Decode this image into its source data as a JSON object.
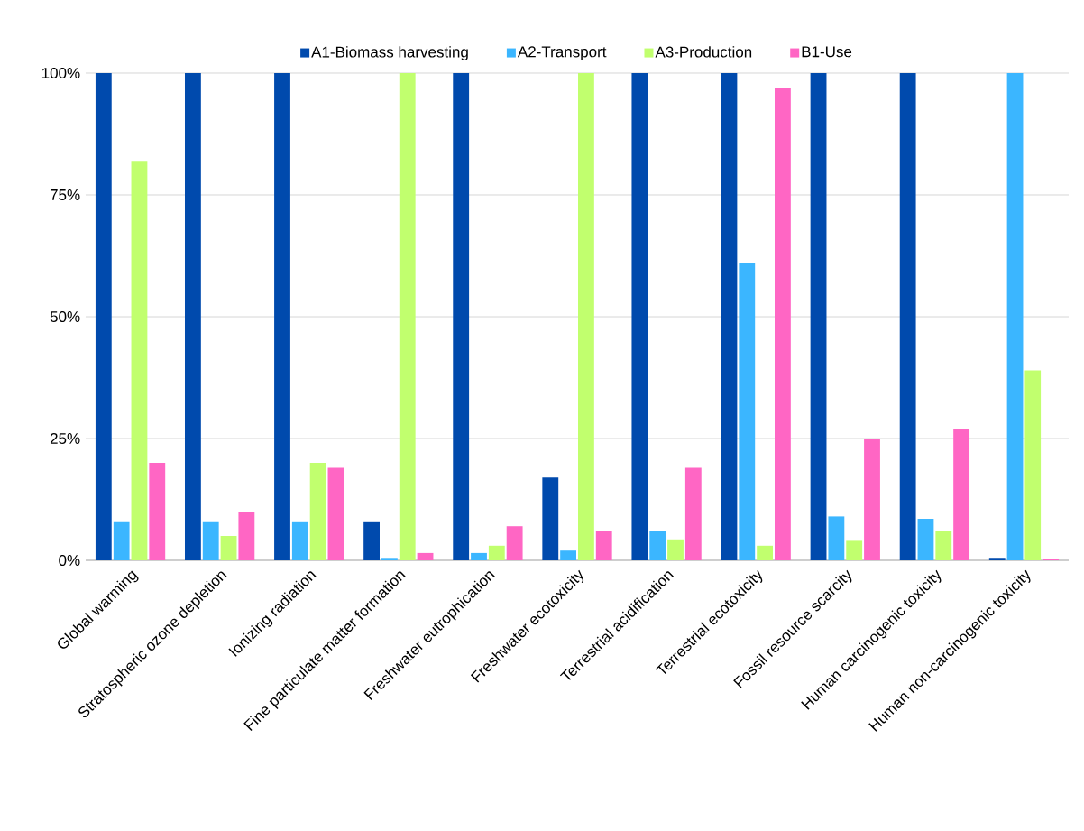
{
  "chart_data": {
    "type": "bar",
    "categories": [
      "Global warming",
      "Stratospheric ozone depletion",
      "Ionizing radiation",
      "Fine particulate matter formation",
      "Freshwater eutrophication",
      "Freshwater ecotoxicity",
      "Terrestrial acidification",
      "Terrestrial ecotoxicity",
      "Fossil resource scarcity",
      "Human carcinogenic toxicity",
      "Human non-carcinogenic toxicity"
    ],
    "series": [
      {
        "name": "A1-Biomass harvesting",
        "color": "#004aad",
        "values": [
          100,
          100,
          100,
          8,
          100,
          17,
          100,
          100,
          100,
          100,
          0.5
        ]
      },
      {
        "name": "A2-Transport",
        "color": "#3bb6ff",
        "values": [
          8,
          8,
          8,
          0.5,
          1.5,
          2,
          6,
          61,
          9,
          8.5,
          100
        ]
      },
      {
        "name": "A3-Production",
        "color": "#c1ff6e",
        "values": [
          82,
          5,
          20,
          100,
          3,
          100,
          4.3,
          3,
          4,
          6,
          39
        ]
      },
      {
        "name": "B1-Use",
        "color": "#ff66c4",
        "values": [
          20,
          10,
          19,
          1.5,
          7,
          6,
          19,
          97,
          25,
          27,
          0.3
        ]
      }
    ],
    "ylim": [
      0,
      100
    ],
    "yticks": [
      {
        "value": 0,
        "label": "0%"
      },
      {
        "value": 25,
        "label": "25%"
      },
      {
        "value": 50,
        "label": "50%"
      },
      {
        "value": 75,
        "label": "75%"
      },
      {
        "value": 100,
        "label": "100%"
      }
    ],
    "grid": "y",
    "legend": "top"
  }
}
